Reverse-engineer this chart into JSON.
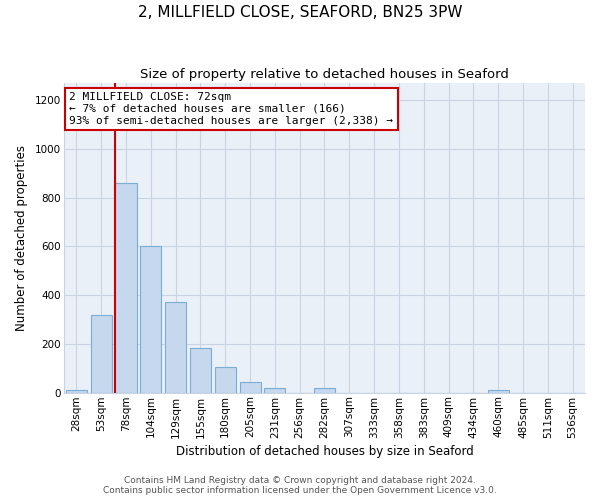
{
  "title": "2, MILLFIELD CLOSE, SEAFORD, BN25 3PW",
  "subtitle": "Size of property relative to detached houses in Seaford",
  "xlabel": "Distribution of detached houses by size in Seaford",
  "ylabel": "Number of detached properties",
  "bar_labels": [
    "28sqm",
    "53sqm",
    "78sqm",
    "104sqm",
    "129sqm",
    "155sqm",
    "180sqm",
    "205sqm",
    "231sqm",
    "256sqm",
    "282sqm",
    "307sqm",
    "333sqm",
    "358sqm",
    "383sqm",
    "409sqm",
    "434sqm",
    "460sqm",
    "485sqm",
    "511sqm",
    "536sqm"
  ],
  "bar_values": [
    10,
    320,
    860,
    600,
    370,
    185,
    105,
    45,
    20,
    0,
    20,
    0,
    0,
    0,
    0,
    0,
    0,
    10,
    0,
    0,
    0
  ],
  "bar_color": "#c5d8ee",
  "bar_edge_color": "#7aaed4",
  "vline_x_index": 2,
  "vline_color": "#cc0000",
  "annotation_line1": "2 MILLFIELD CLOSE: 72sqm",
  "annotation_line2": "← 7% of detached houses are smaller (166)",
  "annotation_line3": "93% of semi-detached houses are larger (2,338) →",
  "annotation_box_color": "#ffffff",
  "annotation_box_edge": "#cc0000",
  "ylim": [
    0,
    1270
  ],
  "yticks": [
    0,
    200,
    400,
    600,
    800,
    1000,
    1200
  ],
  "footer_line1": "Contains HM Land Registry data © Crown copyright and database right 2024.",
  "footer_line2": "Contains public sector information licensed under the Open Government Licence v3.0.",
  "bg_color": "#ffffff",
  "plot_bg_color": "#eaf0f8",
  "grid_color": "#c8d4e4",
  "title_fontsize": 11,
  "subtitle_fontsize": 9.5,
  "axis_label_fontsize": 8.5,
  "tick_fontsize": 7.5,
  "annotation_fontsize": 8,
  "footer_fontsize": 6.5
}
